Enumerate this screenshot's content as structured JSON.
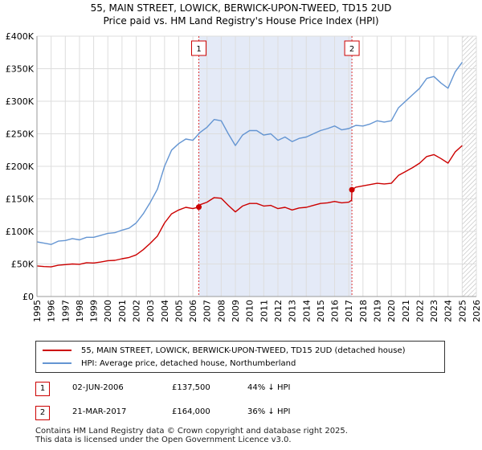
{
  "title_line1": "55, MAIN STREET, LOWICK, BERWICK-UPON-TWEED, TD15 2UD",
  "title_line2": "Price paid vs. HM Land Registry's House Price Index (HPI)",
  "chart_data": {
    "type": "line",
    "xlim": [
      1995,
      2026
    ],
    "ylim": [
      0,
      400000
    ],
    "x_ticks": [
      "1995",
      "1996",
      "1997",
      "1998",
      "1999",
      "2000",
      "2001",
      "2002",
      "2003",
      "2004",
      "2005",
      "2006",
      "2007",
      "2008",
      "2009",
      "2010",
      "2011",
      "2012",
      "2013",
      "2014",
      "2015",
      "2016",
      "2017",
      "2018",
      "2019",
      "2020",
      "2021",
      "2022",
      "2023",
      "2024",
      "2025",
      "2026"
    ],
    "y_ticks": [
      {
        "value": 0,
        "label": "£0"
      },
      {
        "value": 50000,
        "label": "£50K"
      },
      {
        "value": 100000,
        "label": "£100K"
      },
      {
        "value": 150000,
        "label": "£150K"
      },
      {
        "value": 200000,
        "label": "£200K"
      },
      {
        "value": 250000,
        "label": "£250K"
      },
      {
        "value": 300000,
        "label": "£300K"
      },
      {
        "value": 350000,
        "label": "£350K"
      },
      {
        "value": 400000,
        "label": "£400K"
      }
    ],
    "shaded_span": [
      2006.42,
      2017.22
    ],
    "forecast_from": 2025.0,
    "series": [
      {
        "name": "HPI",
        "color": "#6495d2",
        "points": [
          [
            1995.0,
            84000
          ],
          [
            1995.5,
            82000
          ],
          [
            1996.0,
            80000
          ],
          [
            1996.5,
            85000
          ],
          [
            1997.0,
            86000
          ],
          [
            1997.5,
            89000
          ],
          [
            1998.0,
            87000
          ],
          [
            1998.5,
            91000
          ],
          [
            1999.0,
            91000
          ],
          [
            1999.5,
            94000
          ],
          [
            2000.0,
            97000
          ],
          [
            2000.5,
            98000
          ],
          [
            2001.0,
            102000
          ],
          [
            2001.5,
            105000
          ],
          [
            2002.0,
            113000
          ],
          [
            2002.5,
            127000
          ],
          [
            2003.0,
            145000
          ],
          [
            2003.5,
            165000
          ],
          [
            2004.0,
            200000
          ],
          [
            2004.5,
            225000
          ],
          [
            2005.0,
            235000
          ],
          [
            2005.5,
            242000
          ],
          [
            2006.0,
            240000
          ],
          [
            2006.5,
            252000
          ],
          [
            2007.0,
            260000
          ],
          [
            2007.5,
            272000
          ],
          [
            2008.0,
            270000
          ],
          [
            2008.5,
            250000
          ],
          [
            2009.0,
            232000
          ],
          [
            2009.5,
            248000
          ],
          [
            2010.0,
            255000
          ],
          [
            2010.5,
            255000
          ],
          [
            2011.0,
            248000
          ],
          [
            2011.5,
            250000
          ],
          [
            2012.0,
            240000
          ],
          [
            2012.5,
            245000
          ],
          [
            2013.0,
            238000
          ],
          [
            2013.5,
            243000
          ],
          [
            2014.0,
            245000
          ],
          [
            2014.5,
            250000
          ],
          [
            2015.0,
            255000
          ],
          [
            2015.5,
            258000
          ],
          [
            2016.0,
            262000
          ],
          [
            2016.5,
            256000
          ],
          [
            2017.0,
            258000
          ],
          [
            2017.5,
            263000
          ],
          [
            2018.0,
            262000
          ],
          [
            2018.5,
            265000
          ],
          [
            2019.0,
            270000
          ],
          [
            2019.5,
            268000
          ],
          [
            2020.0,
            270000
          ],
          [
            2020.5,
            290000
          ],
          [
            2021.0,
            300000
          ],
          [
            2021.5,
            310000
          ],
          [
            2022.0,
            320000
          ],
          [
            2022.5,
            335000
          ],
          [
            2023.0,
            338000
          ],
          [
            2023.5,
            328000
          ],
          [
            2024.0,
            320000
          ],
          [
            2024.5,
            345000
          ],
          [
            2025.0,
            360000
          ]
        ]
      },
      {
        "name": "Price paid",
        "color": "#cc0000",
        "points": [
          [
            1995.0,
            47000
          ],
          [
            1995.5,
            46000
          ],
          [
            1996.0,
            45500
          ],
          [
            1996.5,
            48000
          ],
          [
            1997.0,
            49000
          ],
          [
            1997.5,
            50000
          ],
          [
            1998.0,
            49500
          ],
          [
            1998.5,
            52000
          ],
          [
            1999.0,
            51500
          ],
          [
            1999.5,
            53000
          ],
          [
            2000.0,
            55000
          ],
          [
            2000.5,
            55500
          ],
          [
            2001.0,
            58000
          ],
          [
            2001.5,
            60000
          ],
          [
            2002.0,
            64000
          ],
          [
            2002.5,
            72000
          ],
          [
            2003.0,
            82000
          ],
          [
            2003.5,
            93000
          ],
          [
            2004.0,
            113000
          ],
          [
            2004.5,
            127000
          ],
          [
            2005.0,
            133000
          ],
          [
            2005.5,
            137000
          ],
          [
            2006.0,
            135000
          ],
          [
            2006.42,
            137500
          ],
          [
            2006.5,
            141000
          ],
          [
            2007.0,
            145000
          ],
          [
            2007.5,
            152000
          ],
          [
            2008.0,
            151000
          ],
          [
            2008.5,
            140000
          ],
          [
            2009.0,
            130000
          ],
          [
            2009.5,
            139000
          ],
          [
            2010.0,
            143000
          ],
          [
            2010.5,
            143000
          ],
          [
            2011.0,
            139000
          ],
          [
            2011.5,
            140000
          ],
          [
            2012.0,
            135000
          ],
          [
            2012.5,
            137000
          ],
          [
            2013.0,
            133000
          ],
          [
            2013.5,
            136000
          ],
          [
            2014.0,
            137000
          ],
          [
            2014.5,
            140000
          ],
          [
            2015.0,
            143000
          ],
          [
            2015.5,
            144000
          ],
          [
            2016.0,
            146000
          ],
          [
            2016.5,
            144000
          ],
          [
            2017.0,
            145000
          ],
          [
            2017.2,
            148000
          ],
          [
            2017.22,
            164000
          ],
          [
            2017.5,
            168000
          ],
          [
            2018.0,
            170000
          ],
          [
            2018.5,
            172000
          ],
          [
            2019.0,
            174000
          ],
          [
            2019.5,
            173000
          ],
          [
            2020.0,
            174000
          ],
          [
            2020.5,
            186000
          ],
          [
            2021.0,
            192000
          ],
          [
            2021.5,
            198000
          ],
          [
            2022.0,
            205000
          ],
          [
            2022.5,
            215000
          ],
          [
            2023.0,
            218000
          ],
          [
            2023.5,
            212000
          ],
          [
            2024.0,
            205000
          ],
          [
            2024.5,
            222000
          ],
          [
            2025.0,
            232000
          ]
        ]
      }
    ],
    "sales": [
      {
        "label": "1",
        "x": 2006.42,
        "y": 137500
      },
      {
        "label": "2",
        "x": 2017.22,
        "y": 164000
      }
    ]
  },
  "legend": {
    "price_paid": "55, MAIN STREET, LOWICK, BERWICK-UPON-TWEED, TD15 2UD (detached house)",
    "hpi": "HPI: Average price, detached house, Northumberland"
  },
  "transactions": [
    {
      "num": "1",
      "date": "02-JUN-2006",
      "price": "£137,500",
      "hpi": "44% ↓ HPI"
    },
    {
      "num": "2",
      "date": "21-MAR-2017",
      "price": "£164,000",
      "hpi": "36% ↓ HPI"
    }
  ],
  "footer_line1": "Contains HM Land Registry data © Crown copyright and database right 2025.",
  "footer_line2": "This data is licensed under the Open Government Licence v3.0."
}
